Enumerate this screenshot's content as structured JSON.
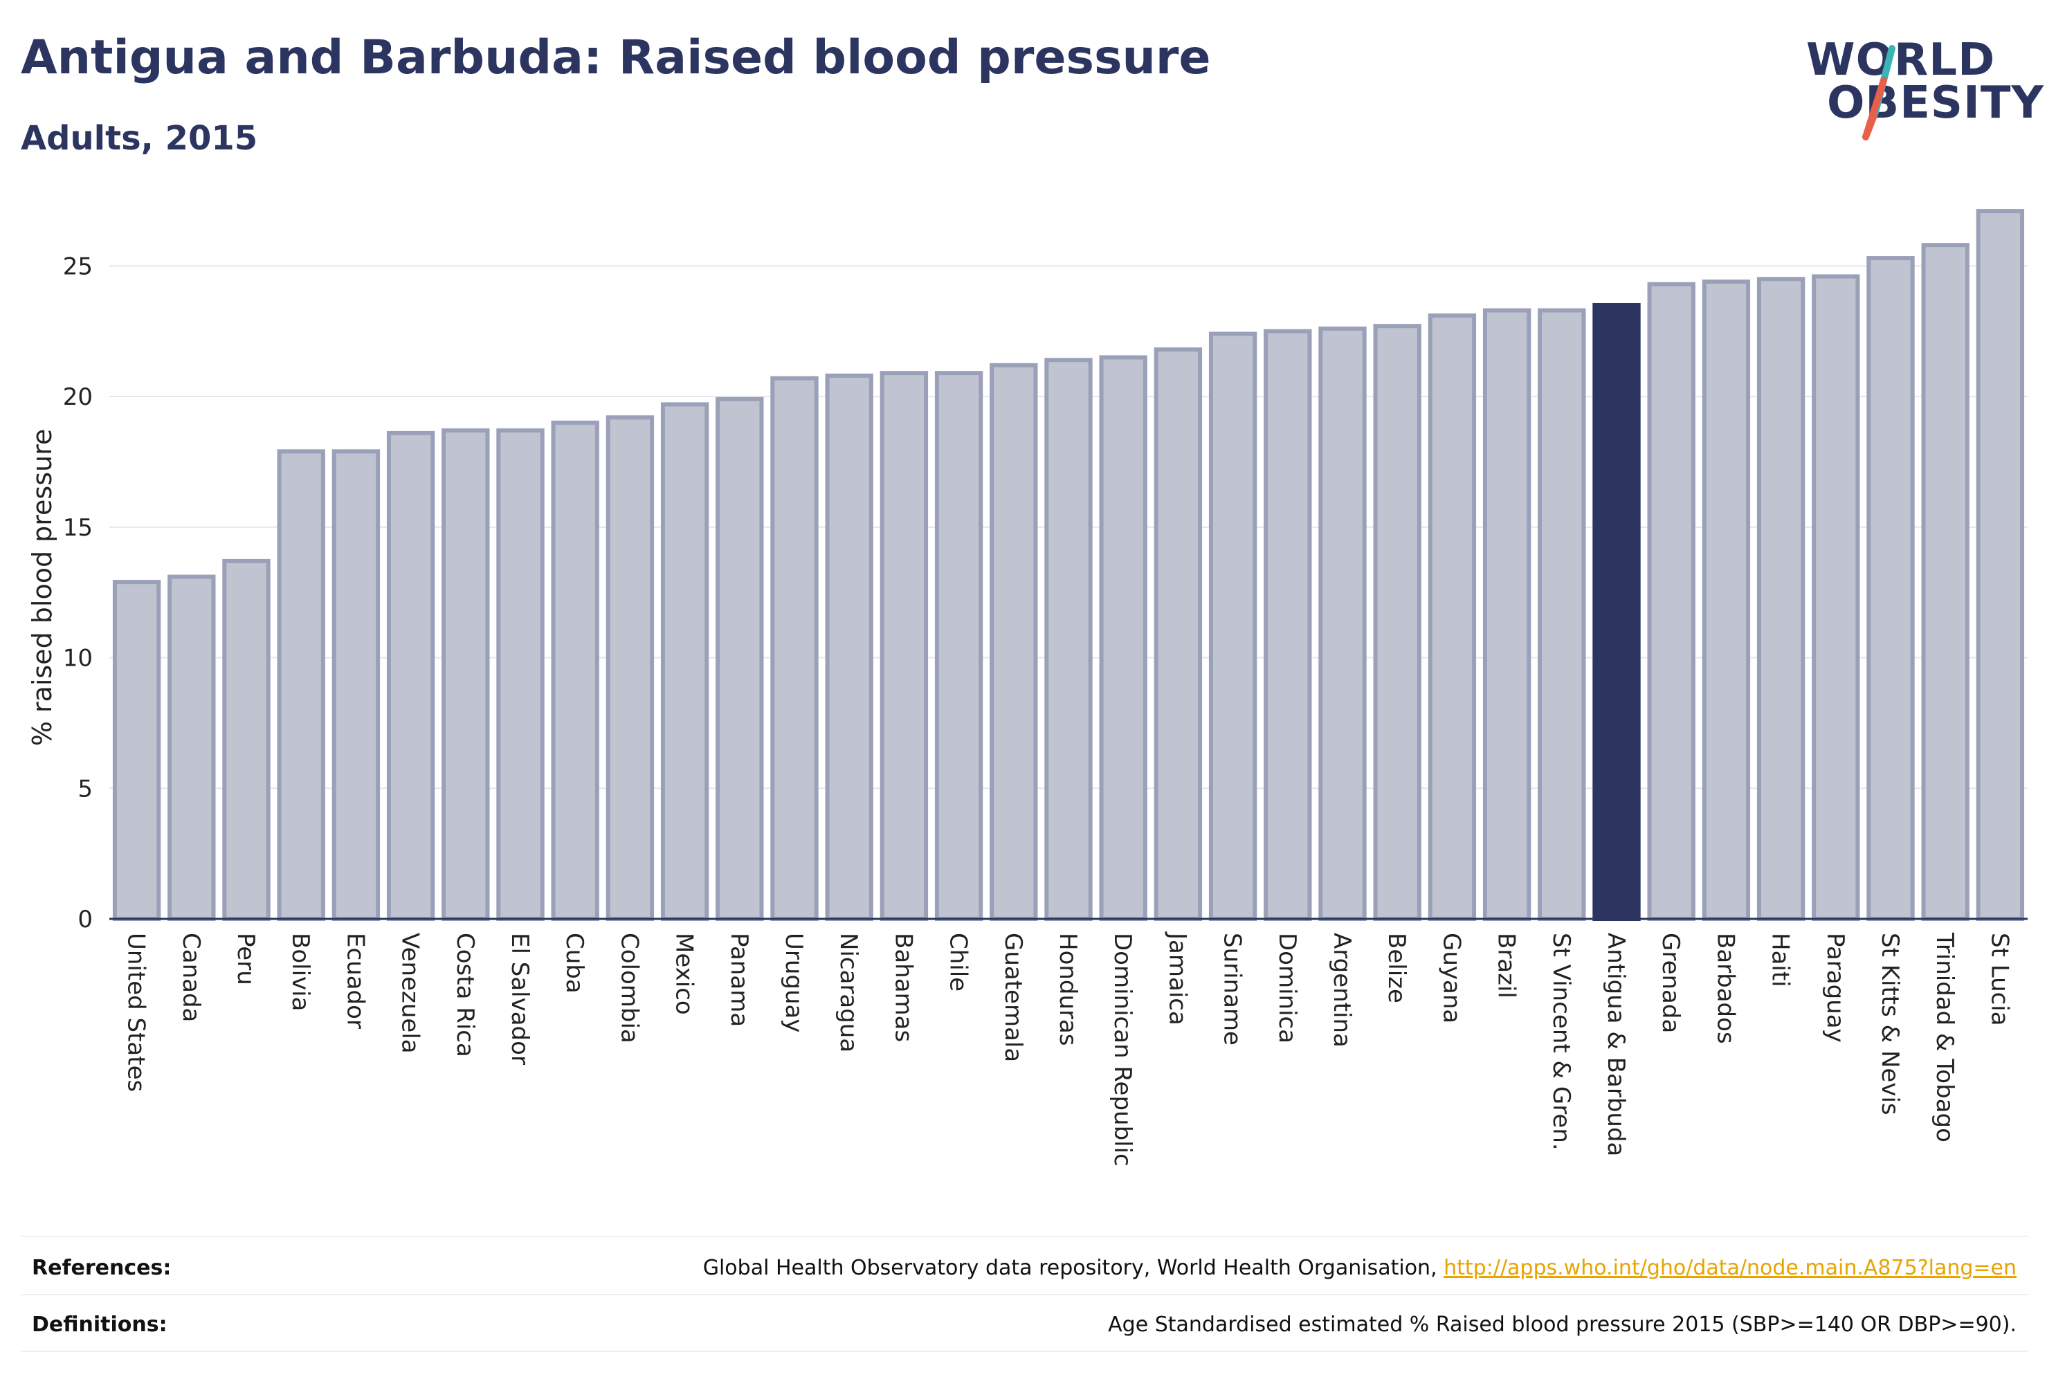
{
  "header": {
    "title": "Antigua and Barbuda: Raised blood pressure",
    "subtitle": "Adults, 2015"
  },
  "logo": {
    "line1": "WORLD",
    "line2": "OBESITY",
    "accent_colors": [
      "#3cb4b4",
      "#e8604c"
    ]
  },
  "colors": {
    "bar": "#c0c3d0",
    "bar_border": "#9aa0b8",
    "highlight": "#2b3560",
    "text": "#2b3560",
    "grid": "#e6e7ec"
  },
  "chart_data": {
    "type": "bar",
    "ylabel": "% raised blood pressure",
    "xlabel": "",
    "ylim": [
      0,
      27.5
    ],
    "yticks": [
      0,
      5,
      10,
      15,
      20,
      25
    ],
    "grid": true,
    "highlight_category": "Antigua & Barbuda",
    "categories": [
      "United States",
      "Canada",
      "Peru",
      "Bolivia",
      "Ecuador",
      "Venezuela",
      "Costa Rica",
      "El Salvador",
      "Cuba",
      "Colombia",
      "Mexico",
      "Panama",
      "Uruguay",
      "Nicaragua",
      "Bahamas",
      "Chile",
      "Guatemala",
      "Honduras",
      "Dominican Republic",
      "Jamaica",
      "Suriname",
      "Dominica",
      "Argentina",
      "Belize",
      "Guyana",
      "Brazil",
      "St Vincent & Gren.",
      "Antigua & Barbuda",
      "Grenada",
      "Barbados",
      "Haiti",
      "Paraguay",
      "St Kitts & Nevis",
      "Trinidad & Tobago",
      "St Lucia"
    ],
    "values": [
      12.9,
      13.1,
      13.7,
      17.9,
      17.9,
      18.6,
      18.7,
      18.7,
      19.0,
      19.2,
      19.7,
      19.9,
      20.7,
      20.8,
      20.9,
      20.9,
      21.2,
      21.4,
      21.5,
      21.8,
      22.4,
      22.5,
      22.6,
      22.7,
      23.1,
      23.3,
      23.3,
      23.5,
      24.3,
      24.4,
      24.5,
      24.6,
      25.3,
      25.8,
      27.1
    ]
  },
  "footer": {
    "references_label": "References:",
    "references_text": "Global Health Observatory data repository, World Health Organisation, ",
    "references_link": "http://apps.who.int/gho/data/node.main.A875?lang=en",
    "definitions_label": "Definitions:",
    "definitions_text": "Age Standardised estimated % Raised blood pressure 2015 (SBP>=140 OR DBP>=90)."
  }
}
